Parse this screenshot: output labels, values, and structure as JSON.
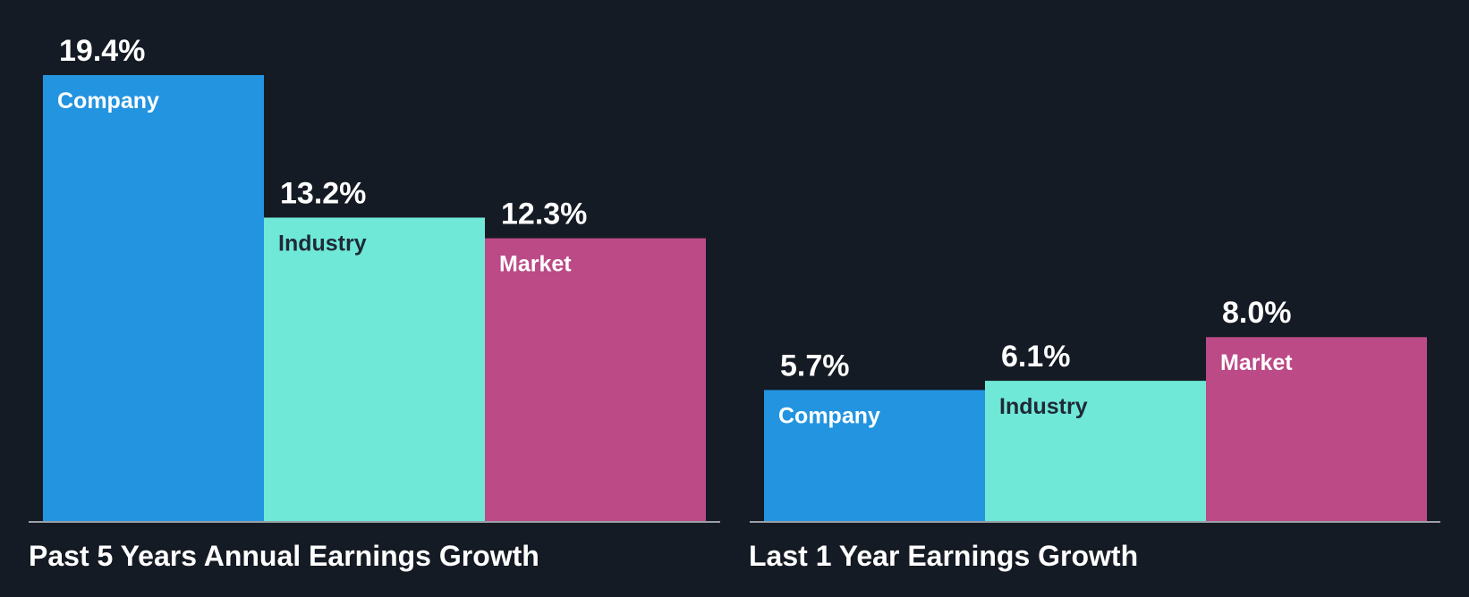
{
  "colors": {
    "background": "#151b24",
    "company": "#2394e0",
    "industry": "#6fe8d8",
    "market": "#bb4a87",
    "axis": "#9aa0a6",
    "value_text": "#ffffff",
    "label_light": "#ffffff",
    "label_dark": "#1f2a36"
  },
  "chart_data": [
    {
      "type": "bar",
      "title": "Past 5 Years Annual Earnings Growth",
      "categories": [
        "Company",
        "Industry",
        "Market"
      ],
      "values": [
        19.4,
        13.2,
        12.3
      ],
      "value_labels": [
        "19.4%",
        "13.2%",
        "12.3%"
      ],
      "ylim": [
        0,
        19.4
      ],
      "grid": false,
      "legend": "none"
    },
    {
      "type": "bar",
      "title": "Last 1 Year Earnings Growth",
      "categories": [
        "Company",
        "Industry",
        "Market"
      ],
      "values": [
        5.7,
        6.1,
        8.0
      ],
      "value_labels": [
        "5.7%",
        "6.1%",
        "8.0%"
      ],
      "ylim": [
        0,
        19.4
      ],
      "grid": false,
      "legend": "none"
    }
  ]
}
